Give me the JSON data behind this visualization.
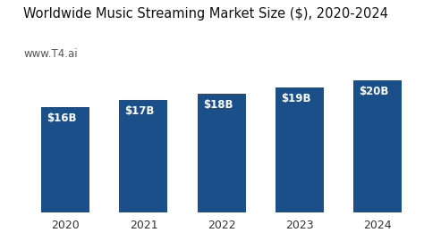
{
  "title": "Worldwide Music Streaming Market Size ($), 2020-2024",
  "subtitle": "www.T4.ai",
  "categories": [
    "2020",
    "2021",
    "2022",
    "2023",
    "2024"
  ],
  "values": [
    16,
    17,
    18,
    19,
    20
  ],
  "bar_labels": [
    "$16B",
    "$17B",
    "$18B",
    "$19B",
    "$20B"
  ],
  "bar_color": "#1a4f8a",
  "background_color": "#ffffff",
  "title_fontsize": 10.5,
  "subtitle_fontsize": 8.5,
  "label_fontsize": 8.5,
  "tick_fontsize": 9,
  "ylim": [
    0,
    22
  ],
  "bar_width": 0.62
}
